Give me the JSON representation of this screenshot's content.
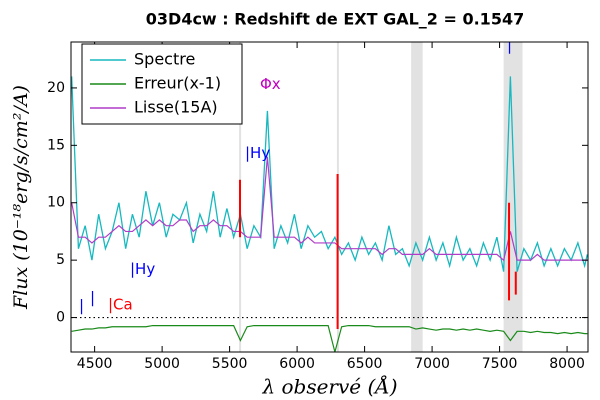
{
  "chart_data": {
    "type": "line",
    "title": "03D4cw : Redshift de EXT GAL_2 = 0.1547",
    "xlabel": "λ observé (Å)",
    "ylabel": "Flux (10⁻¹⁸erg/s/cm²/A)",
    "xlim": [
      4325,
      8155
    ],
    "ylim": [
      -3,
      24
    ],
    "xticks": [
      4500,
      5000,
      5500,
      6000,
      6500,
      7000,
      7500,
      8000
    ],
    "yticks": [
      0,
      5,
      10,
      15,
      20
    ],
    "hline": 0,
    "legend": "upper left",
    "x": [
      4330,
      4380,
      4430,
      4480,
      4530,
      4580,
      4630,
      4680,
      4730,
      4780,
      4830,
      4880,
      4930,
      4980,
      5030,
      5080,
      5130,
      5180,
      5230,
      5280,
      5330,
      5380,
      5430,
      5480,
      5530,
      5580,
      5630,
      5680,
      5730,
      5780,
      5830,
      5880,
      5930,
      5980,
      6030,
      6080,
      6130,
      6180,
      6230,
      6280,
      6330,
      6380,
      6430,
      6480,
      6530,
      6580,
      6630,
      6680,
      6730,
      6780,
      6830,
      6880,
      6930,
      6980,
      7030,
      7080,
      7130,
      7180,
      7230,
      7280,
      7330,
      7380,
      7430,
      7480,
      7530,
      7580,
      7630,
      7680,
      7730,
      7780,
      7830,
      7880,
      7930,
      7980,
      8030,
      8080,
      8130,
      8150
    ],
    "series": [
      {
        "name": "Spectre",
        "color": "#17b8bf",
        "values": [
          21,
          6,
          8,
          5,
          9,
          6,
          7.5,
          10,
          6,
          9,
          7,
          11,
          8,
          10,
          7,
          9,
          8.5,
          10,
          6.5,
          9,
          7.5,
          11,
          7,
          9.5,
          7,
          9,
          6,
          8,
          7,
          18,
          6,
          8,
          6.5,
          9,
          6,
          8,
          7,
          7.5,
          6,
          7,
          5.5,
          6.5,
          5,
          7,
          5.5,
          6.5,
          5,
          8,
          5.5,
          6,
          4.5,
          6.5,
          5,
          7,
          5,
          6.5,
          4.5,
          7,
          5,
          6,
          4.5,
          6.5,
          5,
          7,
          4,
          21,
          4,
          6,
          5,
          6.5,
          4.5,
          6,
          4.5,
          6,
          5,
          6.5,
          4.5,
          5.5
        ]
      },
      {
        "name": "Erreur(x-1)",
        "color": "#1a8a1a",
        "values": [
          -1.2,
          -1.1,
          -1.0,
          -1.0,
          -0.9,
          -0.9,
          -0.8,
          -0.8,
          -0.8,
          -0.8,
          -0.8,
          -0.8,
          -0.7,
          -0.7,
          -0.7,
          -0.7,
          -0.7,
          -0.7,
          -0.7,
          -0.7,
          -0.7,
          -0.7,
          -0.7,
          -0.7,
          -0.7,
          -2,
          -0.8,
          -0.7,
          -0.7,
          -0.7,
          -0.7,
          -0.7,
          -0.7,
          -0.7,
          -0.7,
          -0.7,
          -0.7,
          -0.7,
          -0.7,
          -3,
          -0.8,
          -0.7,
          -0.7,
          -0.7,
          -0.7,
          -0.8,
          -0.8,
          -0.8,
          -0.8,
          -0.8,
          -0.8,
          -1.0,
          -0.9,
          -1.0,
          -1.1,
          -1.0,
          -1.0,
          -1.1,
          -1.0,
          -1.1,
          -1.0,
          -1.1,
          -1.2,
          -1.1,
          -1.2,
          -2,
          -1.2,
          -1.2,
          -1.3,
          -1.2,
          -1.3,
          -1.3,
          -1.4,
          -1.3,
          -1.4,
          -1.3,
          -1.4,
          -1.4
        ]
      },
      {
        "name": "Lisse(15A)",
        "color": "#b03cc8",
        "values": [
          10,
          7,
          7,
          6.5,
          7,
          7,
          7.5,
          8,
          7.5,
          7.5,
          8,
          8.5,
          8,
          8.5,
          8,
          8,
          8.5,
          8.5,
          7.5,
          8,
          8,
          8.5,
          8,
          8,
          7.5,
          7.5,
          7,
          7,
          7,
          14,
          7,
          7,
          7,
          7,
          6.5,
          7,
          6.5,
          6.5,
          6.5,
          6.5,
          6,
          6,
          6,
          6,
          6,
          6,
          5.5,
          6,
          6,
          5.5,
          5.5,
          5.5,
          5.5,
          6,
          5.5,
          5.5,
          5.5,
          5.5,
          5.5,
          5.5,
          5.5,
          5.5,
          5.5,
          5.5,
          5,
          7.5,
          5,
          5,
          5,
          5.5,
          5,
          5,
          5,
          5,
          5,
          5,
          5,
          5
        ]
      }
    ],
    "spans": [
      [
        5570,
        5585
      ],
      [
        6295,
        6305
      ],
      [
        6845,
        6930
      ],
      [
        7530,
        7670
      ]
    ],
    "red_marks": {
      "color": "#ff0000",
      "x": [
        5577,
        6300,
        7570,
        7620
      ],
      "low": [
        7,
        -1,
        1.5,
        2
      ],
      "high": [
        12,
        12.5,
        10,
        4
      ]
    },
    "annotations": [
      {
        "text": "Φx",
        "x": 5725,
        "y": 20.3,
        "color": "#c000c0"
      },
      {
        "text": "|Hy",
        "x": 5614,
        "y": 14.3,
        "color": "#0000ff"
      },
      {
        "text": "|Hy",
        "x": 4762,
        "y": 4.2,
        "color": "#0000ff"
      },
      {
        "text": "|Ca",
        "x": 4599,
        "y": 1.1,
        "color": "#ff0000"
      },
      {
        "text": "|",
        "x": 4384,
        "y": 1,
        "color": "#0000ff"
      },
      {
        "text": "|",
        "x": 4466,
        "y": 1.7,
        "color": "#0000ff"
      },
      {
        "text": "|",
        "x": 7555,
        "y": 23.7,
        "color": "#0000ff"
      }
    ]
  }
}
